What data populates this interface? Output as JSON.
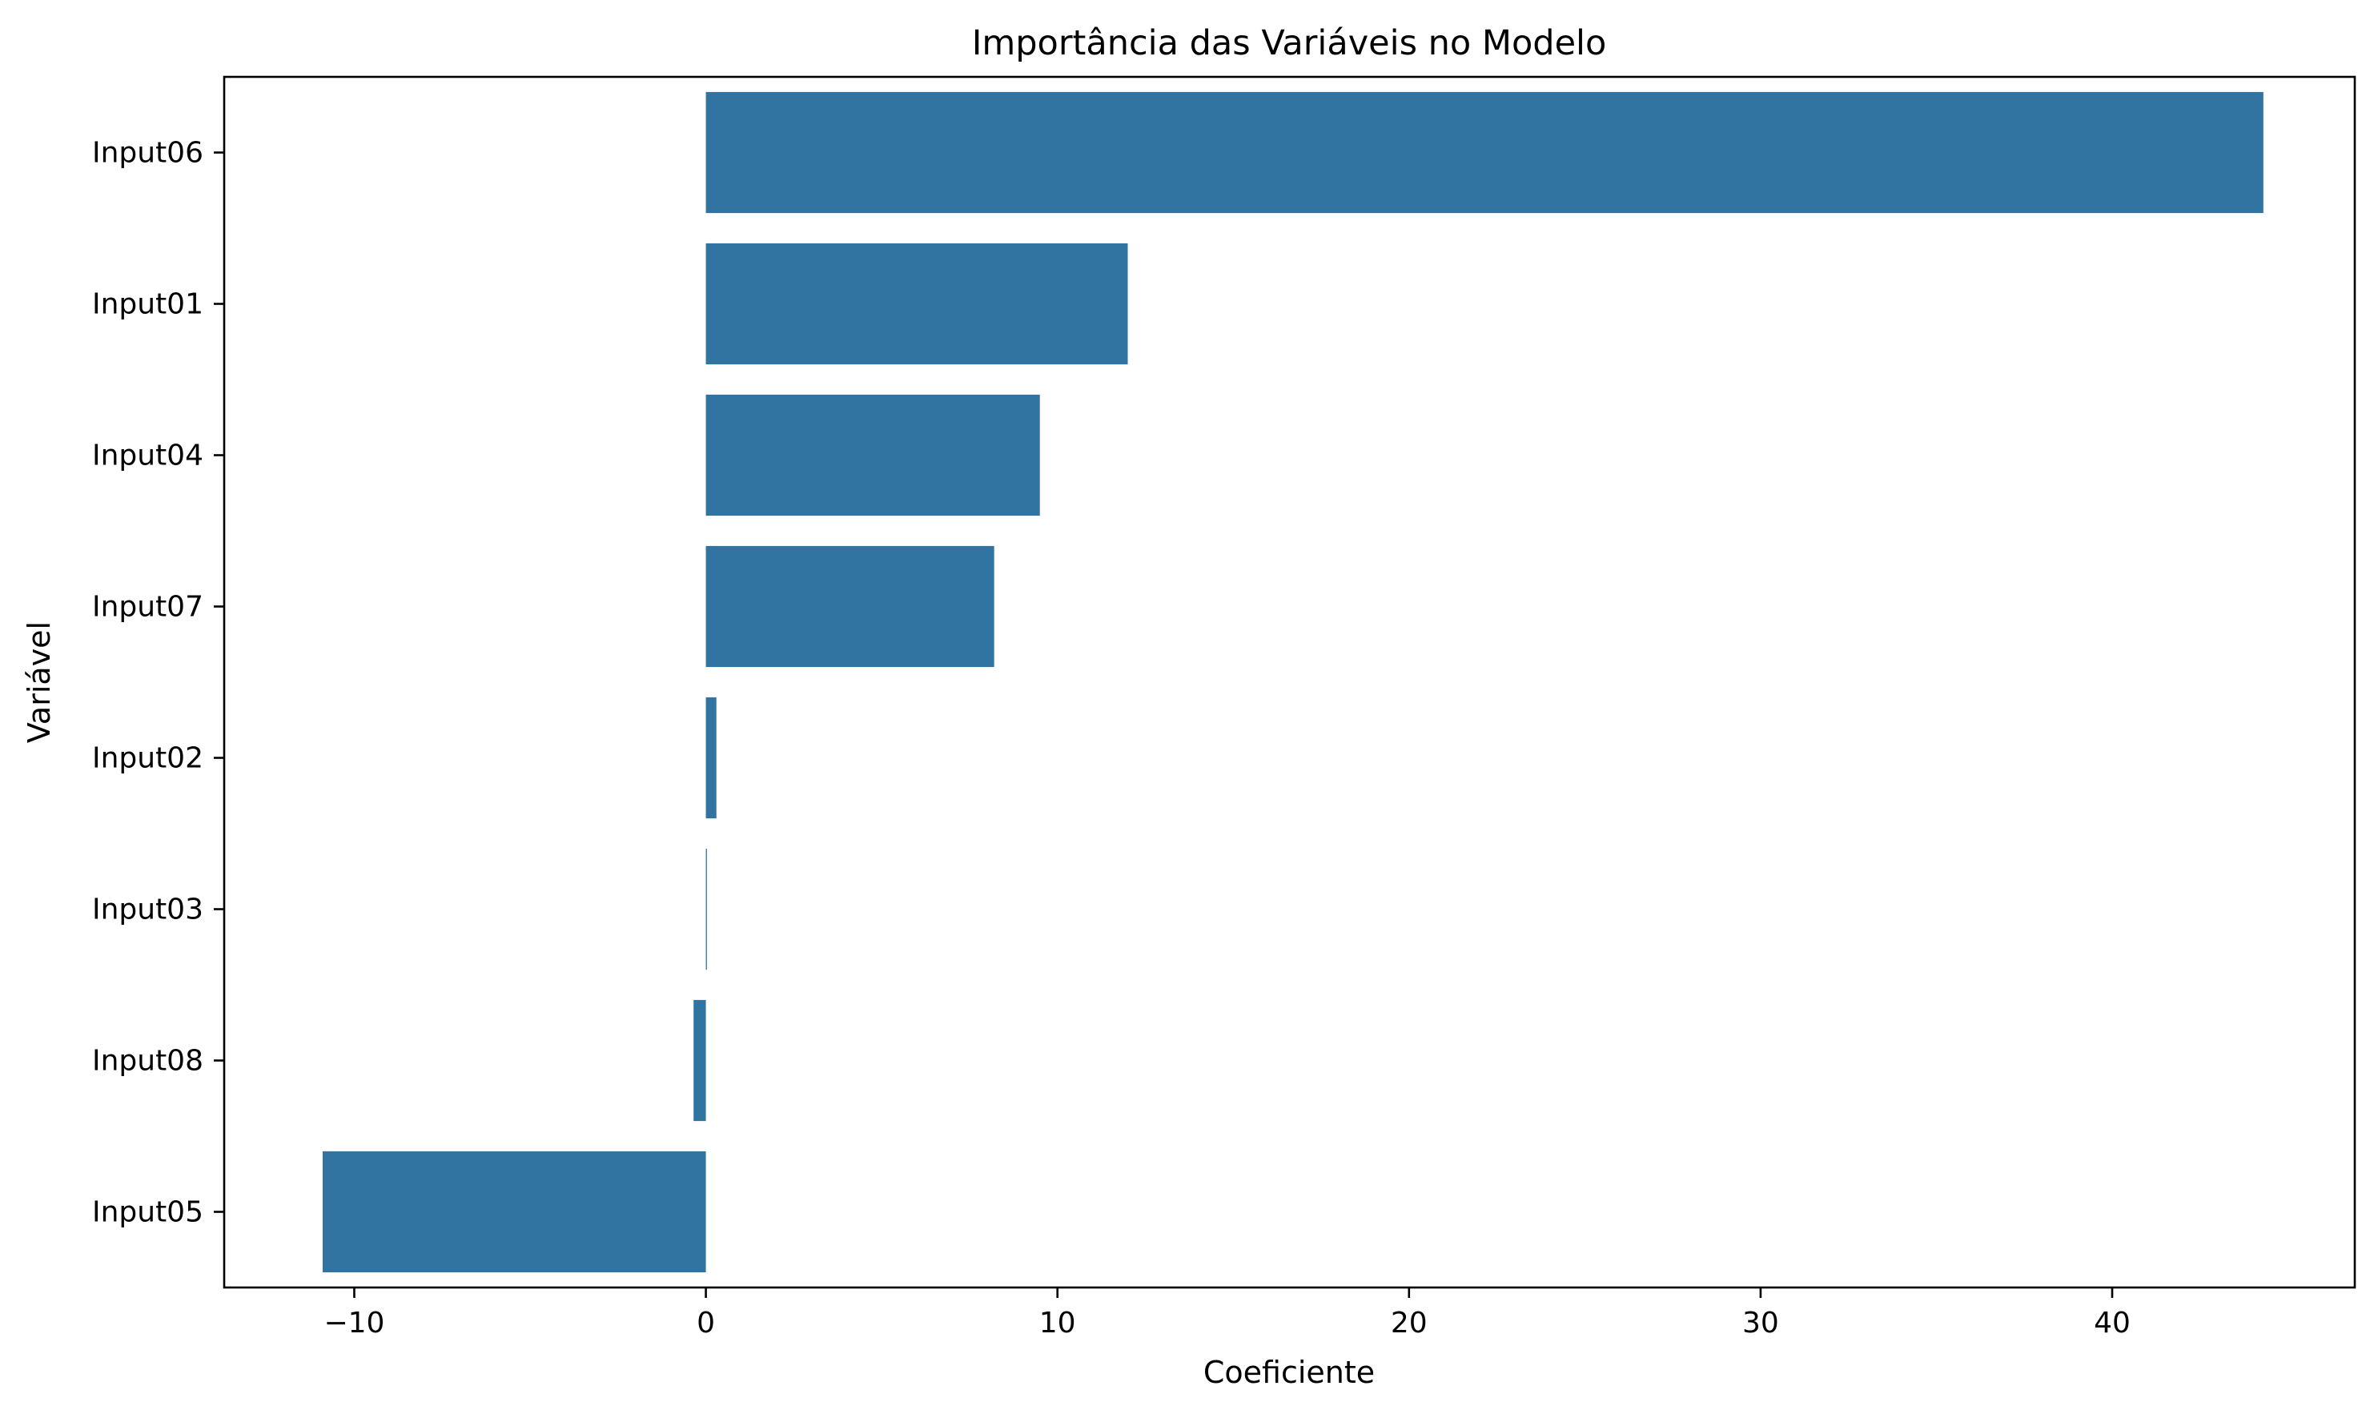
{
  "chart_data": {
    "type": "bar",
    "orientation": "horizontal",
    "title": "Importância das Variáveis no Modelo",
    "xlabel": "Coeficiente",
    "ylabel": "Variável",
    "categories": [
      "Input06",
      "Input01",
      "Input04",
      "Input07",
      "Input02",
      "Input03",
      "Input08",
      "Input05"
    ],
    "values": [
      44.3,
      12.0,
      9.5,
      8.2,
      0.3,
      0.03,
      -0.35,
      -10.9
    ],
    "xlim": [
      -13.7,
      46.9
    ],
    "xticks": [
      -10,
      0,
      10,
      20,
      30,
      40
    ],
    "xtick_labels": [
      "−10",
      "0",
      "10",
      "20",
      "30",
      "40"
    ],
    "grid": false,
    "colors": {
      "bar": "#3274a1",
      "axis": "#000000"
    }
  }
}
